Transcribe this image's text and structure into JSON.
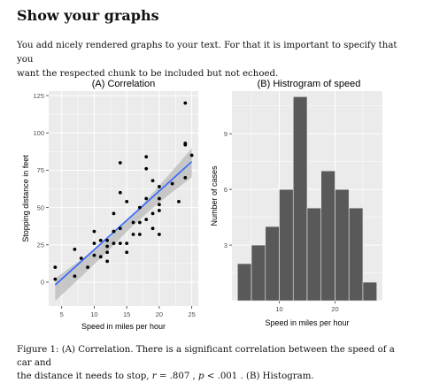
{
  "section_title": "Show your graphs",
  "intro_line1": "You add nicely rendered graphs to your text. For that it is important to specify that you",
  "intro_line2": "want the respected chunk to be included but not echoed.",
  "caption": {
    "prefix": "Figure 1: (A) Correlation. There is a significant correlation between the speed of a car and",
    "line2_start": "the distance it needs to stop, ",
    "r_symbol": "r",
    "r_value": " = .807 , ",
    "p_symbol": "p",
    "p_value": " < .001",
    "suffix": " . (B) Histogram."
  },
  "colors": {
    "panel_bg": "#ebebeb",
    "grid": "#ffffff",
    "points": "#000000",
    "fit_line": "#3366ff",
    "ribbon": "#bdbdbd",
    "bars": "#595959",
    "bar_edge": "#ebebeb"
  },
  "chart_data": [
    {
      "type": "scatter",
      "title": "(A) Correlation",
      "xlabel": "Speed in miles per hour",
      "ylabel": "Stopping distance in feet",
      "xlim": [
        3.0,
        26.0
      ],
      "ylim": [
        -16,
        128
      ],
      "xticks": [
        5,
        10,
        15,
        20,
        25
      ],
      "yticks": [
        0,
        25,
        50,
        75,
        100,
        125
      ],
      "x": [
        4,
        4,
        7,
        7,
        8,
        9,
        10,
        10,
        10,
        11,
        11,
        12,
        12,
        12,
        12,
        13,
        13,
        13,
        13,
        14,
        14,
        14,
        14,
        15,
        15,
        15,
        16,
        16,
        17,
        17,
        17,
        18,
        18,
        18,
        18,
        19,
        19,
        19,
        20,
        20,
        20,
        20,
        20,
        22,
        23,
        24,
        24,
        24,
        24,
        25
      ],
      "y": [
        2,
        10,
        4,
        22,
        16,
        10,
        18,
        26,
        34,
        17,
        28,
        14,
        20,
        24,
        28,
        26,
        34,
        34,
        46,
        26,
        36,
        60,
        80,
        20,
        26,
        54,
        32,
        40,
        32,
        40,
        50,
        42,
        56,
        76,
        84,
        36,
        46,
        68,
        32,
        48,
        52,
        56,
        64,
        66,
        54,
        70,
        92,
        93,
        120,
        85
      ],
      "fit": {
        "intercept": -17.58,
        "slope": 3.932
      },
      "ci_band": {
        "x": [
          4,
          8,
          12,
          15.4,
          19,
          22,
          25
        ],
        "lower": [
          -12.5,
          3.6,
          20.3,
          35.6,
          49.8,
          60.4,
          70.2
        ],
        "upper": [
          2.5,
          15.2,
          28.6,
          42.4,
          59.6,
          74.5,
          89.7
        ]
      }
    },
    {
      "type": "bar",
      "title": "(B) Histrogram of speed",
      "xlabel": "Speed in miles per hour",
      "ylabel": "Number of cases",
      "xlim": [
        1.5,
        28.5
      ],
      "ylim": [
        0,
        11.3
      ],
      "xticks": [
        10,
        20
      ],
      "yticks": [
        3,
        6,
        9
      ],
      "bin_width": 2.5,
      "bin_starts": [
        2.5,
        5.0,
        7.5,
        10.0,
        12.5,
        15.0,
        17.5,
        20.0,
        22.5,
        25.0
      ],
      "counts": [
        2,
        3,
        4,
        6,
        11,
        5,
        7,
        6,
        5,
        1
      ]
    }
  ]
}
